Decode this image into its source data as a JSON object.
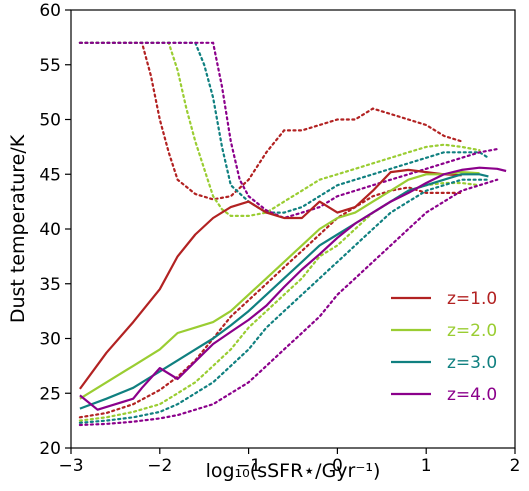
{
  "chart_data": {
    "type": "line",
    "title": "",
    "xlabel": "log₁₀(sSFR⋆/Gyr⁻¹)",
    "ylabel": "Dust temperature/K",
    "xlim": [
      -3,
      2
    ],
    "ylim": [
      20,
      60
    ],
    "xticks": [
      "−3",
      "−2",
      "−1",
      "0",
      "1",
      "2"
    ],
    "yticks": [
      "20",
      "25",
      "30",
      "35",
      "40",
      "45",
      "50",
      "55",
      "60"
    ],
    "xtick_values": [
      -3,
      -2,
      -1,
      0,
      1,
      2
    ],
    "ytick_values": [
      20,
      25,
      30,
      35,
      40,
      45,
      50,
      55,
      60
    ],
    "grid": false,
    "legend_position": "lower-right",
    "series": [
      {
        "name": "z=1.0",
        "color": "#b22222",
        "median": {
          "x": [
            -2.9,
            -2.6,
            -2.3,
            -2.0,
            -1.8,
            -1.6,
            -1.4,
            -1.2,
            -1.0,
            -0.8,
            -0.6,
            -0.4,
            -0.2,
            0.0,
            0.2,
            0.4,
            0.6,
            0.8,
            1.0,
            1.2,
            1.4
          ],
          "y": [
            25.4,
            28.7,
            31.5,
            34.5,
            37.5,
            39.5,
            41.0,
            42.0,
            42.5,
            41.5,
            41.0,
            41.0,
            42.5,
            41.5,
            42.0,
            43.5,
            45.2,
            45.4,
            45.2,
            45.0,
            44.9
          ]
        },
        "upper": {
          "x": [
            -2.9,
            -2.6,
            -2.2,
            -2.1,
            -2.0,
            -1.9,
            -1.8,
            -1.6,
            -1.4,
            -1.2,
            -1.0,
            -0.8,
            -0.6,
            -0.4,
            -0.2,
            0.0,
            0.2,
            0.4,
            0.6,
            0.8,
            1.0,
            1.2,
            1.4
          ],
          "y": [
            57.0,
            57.0,
            57.0,
            54.0,
            50.0,
            47.0,
            44.5,
            43.2,
            42.7,
            43.0,
            44.5,
            47.0,
            49.0,
            49.0,
            49.5,
            50.0,
            50.0,
            51.0,
            50.5,
            50.0,
            49.5,
            48.5,
            48.0
          ]
        },
        "lower": {
          "x": [
            -2.9,
            -2.6,
            -2.3,
            -2.0,
            -1.8,
            -1.6,
            -1.4,
            -1.2,
            -1.0,
            -0.8,
            -0.6,
            -0.4,
            -0.2,
            0.0,
            0.2,
            0.4,
            0.6,
            0.8,
            1.0,
            1.2,
            1.4
          ],
          "y": [
            22.8,
            23.2,
            24.0,
            25.3,
            26.5,
            28.0,
            30.0,
            32.0,
            33.5,
            35.0,
            36.5,
            38.0,
            39.5,
            41.0,
            42.0,
            43.0,
            43.5,
            43.8,
            43.3,
            43.3,
            43.3
          ]
        }
      },
      {
        "name": "z=2.0",
        "color": "#9acd32",
        "median": {
          "x": [
            -2.9,
            -2.6,
            -2.3,
            -2.0,
            -1.8,
            -1.6,
            -1.4,
            -1.2,
            -1.0,
            -0.8,
            -0.6,
            -0.4,
            -0.2,
            0.0,
            0.2,
            0.4,
            0.6,
            0.8,
            1.0,
            1.2,
            1.4,
            1.6
          ],
          "y": [
            24.5,
            26.0,
            27.5,
            29.0,
            30.5,
            31.0,
            31.5,
            32.5,
            34.0,
            35.5,
            37.0,
            38.5,
            40.0,
            41.0,
            41.5,
            42.5,
            43.5,
            44.5,
            45.0,
            45.0,
            45.2,
            45.1
          ]
        },
        "upper": {
          "x": [
            -2.9,
            -2.6,
            -2.2,
            -1.9,
            -1.8,
            -1.7,
            -1.6,
            -1.5,
            -1.4,
            -1.3,
            -1.2,
            -1.0,
            -0.8,
            -0.6,
            -0.4,
            -0.2,
            0.0,
            0.2,
            0.4,
            0.6,
            0.8,
            1.0,
            1.2,
            1.4,
            1.6
          ],
          "y": [
            57.0,
            57.0,
            57.0,
            57.0,
            54.5,
            51.0,
            48.0,
            45.5,
            43.0,
            41.8,
            41.2,
            41.2,
            41.5,
            42.5,
            43.5,
            44.5,
            45.0,
            45.5,
            46.0,
            46.5,
            47.0,
            47.5,
            47.7,
            47.5,
            47.2
          ]
        },
        "lower": {
          "x": [
            -2.9,
            -2.6,
            -2.3,
            -2.0,
            -1.8,
            -1.6,
            -1.4,
            -1.2,
            -1.0,
            -0.8,
            -0.6,
            -0.4,
            -0.2,
            0.0,
            0.2,
            0.4,
            0.6,
            0.8,
            1.0,
            1.2,
            1.4,
            1.6
          ],
          "y": [
            22.5,
            22.8,
            23.3,
            24.0,
            25.0,
            26.0,
            27.5,
            29.0,
            31.0,
            32.5,
            34.0,
            35.5,
            37.5,
            38.5,
            40.0,
            41.5,
            42.5,
            43.5,
            44.0,
            44.2,
            44.2,
            44.0
          ]
        }
      },
      {
        "name": "z=3.0",
        "color": "#108080",
        "median": {
          "x": [
            -2.9,
            -2.6,
            -2.3,
            -2.0,
            -1.8,
            -1.6,
            -1.4,
            -1.2,
            -1.0,
            -0.8,
            -0.6,
            -0.4,
            -0.2,
            0.0,
            0.2,
            0.4,
            0.6,
            0.8,
            1.0,
            1.2,
            1.4,
            1.6,
            1.7
          ],
          "y": [
            23.6,
            24.5,
            25.5,
            27.0,
            28.0,
            29.0,
            30.0,
            31.2,
            32.5,
            34.0,
            35.5,
            37.0,
            38.5,
            39.5,
            40.5,
            41.5,
            42.5,
            43.5,
            44.0,
            44.5,
            45.0,
            45.0,
            44.8
          ]
        },
        "upper": {
          "x": [
            -2.9,
            -2.6,
            -2.2,
            -1.8,
            -1.6,
            -1.5,
            -1.4,
            -1.3,
            -1.2,
            -1.0,
            -0.8,
            -0.6,
            -0.4,
            -0.2,
            0.0,
            0.2,
            0.4,
            0.6,
            0.8,
            1.0,
            1.2,
            1.4,
            1.6,
            1.7
          ],
          "y": [
            57.0,
            57.0,
            57.0,
            57.0,
            57.0,
            55.0,
            52.0,
            47.5,
            44.0,
            42.5,
            41.5,
            41.5,
            42.0,
            43.0,
            44.0,
            44.5,
            45.0,
            45.5,
            46.0,
            46.5,
            47.0,
            47.0,
            47.0,
            46.5
          ]
        },
        "lower": {
          "x": [
            -2.9,
            -2.6,
            -2.3,
            -2.0,
            -1.8,
            -1.6,
            -1.4,
            -1.2,
            -1.0,
            -0.8,
            -0.6,
            -0.4,
            -0.2,
            0.0,
            0.2,
            0.4,
            0.6,
            0.8,
            1.0,
            1.2,
            1.4,
            1.6,
            1.7
          ],
          "y": [
            22.3,
            22.5,
            22.8,
            23.3,
            24.0,
            25.0,
            26.0,
            27.5,
            29.0,
            31.0,
            32.5,
            34.0,
            35.5,
            37.0,
            38.5,
            40.0,
            41.5,
            42.5,
            43.5,
            44.0,
            44.5,
            44.5,
            44.5
          ]
        }
      },
      {
        "name": "z=4.0",
        "color": "#8b008b",
        "median": {
          "x": [
            -2.9,
            -2.7,
            -2.5,
            -2.3,
            -2.2,
            -2.0,
            -1.8,
            -1.6,
            -1.4,
            -1.2,
            -1.0,
            -0.8,
            -0.6,
            -0.4,
            -0.2,
            0.0,
            0.2,
            0.4,
            0.6,
            0.8,
            1.0,
            1.2,
            1.4,
            1.6,
            1.8,
            1.9
          ],
          "y": [
            24.8,
            23.5,
            24.0,
            24.5,
            25.5,
            27.3,
            26.3,
            27.9,
            29.5,
            30.6,
            31.7,
            33.0,
            34.7,
            36.3,
            37.7,
            39.2,
            40.5,
            41.5,
            42.5,
            43.3,
            44.2,
            45.0,
            45.4,
            45.6,
            45.5,
            45.3
          ]
        },
        "upper": {
          "x": [
            -2.9,
            -2.6,
            -2.2,
            -1.8,
            -1.5,
            -1.4,
            -1.3,
            -1.2,
            -1.1,
            -1.0,
            -0.8,
            -0.6,
            -0.4,
            -0.2,
            0.0,
            0.2,
            0.4,
            0.6,
            0.8,
            1.0,
            1.2,
            1.4,
            1.6,
            1.8
          ],
          "y": [
            57.0,
            57.0,
            57.0,
            57.0,
            57.0,
            57.0,
            53.0,
            48.0,
            44.5,
            43.0,
            41.7,
            41.0,
            41.5,
            42.0,
            43.0,
            43.5,
            44.0,
            44.5,
            45.0,
            45.5,
            46.0,
            46.5,
            47.0,
            47.3
          ]
        },
        "lower": {
          "x": [
            -2.9,
            -2.6,
            -2.3,
            -2.0,
            -1.8,
            -1.6,
            -1.4,
            -1.2,
            -1.0,
            -0.8,
            -0.6,
            -0.4,
            -0.2,
            0.0,
            0.2,
            0.4,
            0.6,
            0.8,
            1.0,
            1.2,
            1.4,
            1.6,
            1.8
          ],
          "y": [
            22.1,
            22.2,
            22.4,
            22.7,
            23.0,
            23.5,
            24.0,
            25.0,
            26.0,
            27.5,
            29.0,
            30.5,
            32.0,
            34.0,
            35.5,
            37.0,
            38.5,
            40.0,
            41.5,
            42.5,
            43.5,
            44.0,
            44.5
          ]
        }
      }
    ]
  }
}
